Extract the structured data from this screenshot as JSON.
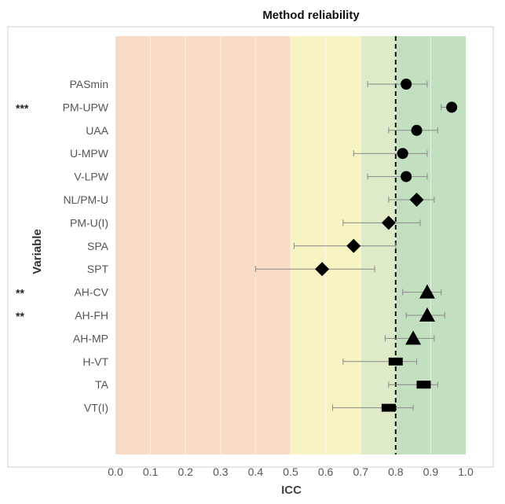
{
  "chart_data": {
    "type": "scatter",
    "title": "Method reliability",
    "xlabel": "ICC",
    "ylabel": "Variable",
    "xlim": [
      0.0,
      1.0
    ],
    "xticks": [
      "0.0",
      "0.1",
      "0.2",
      "0.3",
      "0.4",
      "0.5",
      "0.6",
      "0.7",
      "0.8",
      "0.9",
      "1.0"
    ],
    "reference_line": 0.8,
    "bands": [
      {
        "from": 0.0,
        "to": 0.5,
        "color": "#f9dcc6"
      },
      {
        "from": 0.5,
        "to": 0.7,
        "color": "#f7f3c2"
      },
      {
        "from": 0.7,
        "to": 0.8,
        "color": "#deebc9"
      },
      {
        "from": 0.8,
        "to": 1.0,
        "color": "#c2e0c0"
      }
    ],
    "points": [
      {
        "label": "PASmin",
        "stars": "",
        "value": 0.83,
        "lower": 0.72,
        "upper": 0.89,
        "marker": "circle"
      },
      {
        "label": "PM-UPW",
        "stars": "***",
        "value": 0.96,
        "lower": 0.93,
        "upper": 0.97,
        "marker": "circle"
      },
      {
        "label": "UAA",
        "stars": "",
        "value": 0.86,
        "lower": 0.78,
        "upper": 0.92,
        "marker": "circle"
      },
      {
        "label": "U-MPW",
        "stars": "",
        "value": 0.82,
        "lower": 0.68,
        "upper": 0.89,
        "marker": "circle"
      },
      {
        "label": "V-LPW",
        "stars": "",
        "value": 0.83,
        "lower": 0.72,
        "upper": 0.89,
        "marker": "circle"
      },
      {
        "label": "NL/PM-U",
        "stars": "",
        "value": 0.86,
        "lower": 0.78,
        "upper": 0.91,
        "marker": "diamond"
      },
      {
        "label": "PM-U(I)",
        "stars": "",
        "value": 0.78,
        "lower": 0.65,
        "upper": 0.87,
        "marker": "diamond"
      },
      {
        "label": "SPA",
        "stars": "",
        "value": 0.68,
        "lower": 0.51,
        "upper": 0.8,
        "marker": "diamond"
      },
      {
        "label": "SPT",
        "stars": "",
        "value": 0.59,
        "lower": 0.4,
        "upper": 0.74,
        "marker": "diamond"
      },
      {
        "label": "AH-CV",
        "stars": "**",
        "value": 0.89,
        "lower": 0.82,
        "upper": 0.93,
        "marker": "triangle"
      },
      {
        "label": "AH-FH",
        "stars": "**",
        "value": 0.89,
        "lower": 0.83,
        "upper": 0.94,
        "marker": "triangle"
      },
      {
        "label": "AH-MP",
        "stars": "",
        "value": 0.85,
        "lower": 0.77,
        "upper": 0.91,
        "marker": "triangle"
      },
      {
        "label": "H-VT",
        "stars": "",
        "value": 0.8,
        "lower": 0.65,
        "upper": 0.86,
        "marker": "rect"
      },
      {
        "label": "TA",
        "stars": "",
        "value": 0.88,
        "lower": 0.78,
        "upper": 0.92,
        "marker": "rect"
      },
      {
        "label": "VT(I)",
        "stars": "",
        "value": 0.78,
        "lower": 0.62,
        "upper": 0.85,
        "marker": "rect"
      }
    ]
  }
}
